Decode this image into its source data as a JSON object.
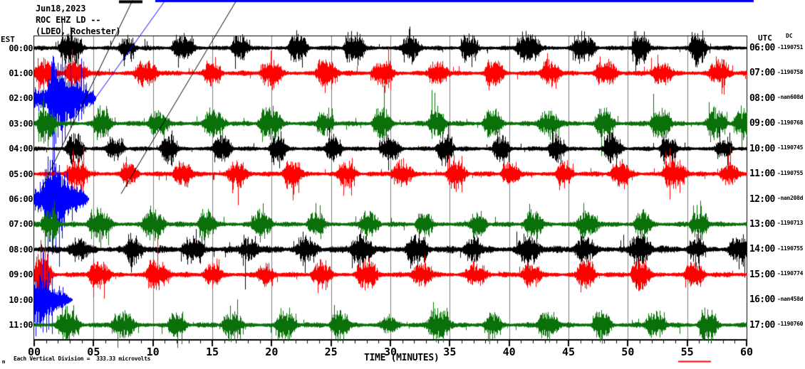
{
  "title": {
    "date": "Jun18,2023",
    "station": "ROC EHZ LD --",
    "location": "(LDEO, Rochester)"
  },
  "axis": {
    "left_header": "EST",
    "right_header": "UTC",
    "right_subheader": "DC",
    "x_label": "TIME (MINUTES)",
    "x_ticks": [
      "00",
      "05",
      "10",
      "15",
      "20",
      "25",
      "30",
      "35",
      "40",
      "45",
      "50",
      "55",
      "60"
    ],
    "scale_note": "Each Vertical Division =  333.33 microvolts",
    "scale_note_marker": "m"
  },
  "chart_data": {
    "type": "seismogram-helicorder",
    "x_range_minutes": [
      0,
      60
    ],
    "grid_interval_minutes": 5,
    "grid_color": "#7d7d7d",
    "palette": {
      "black": "#000000",
      "red": "#ff0000",
      "blue": "#0000ff",
      "green": "#0a700a"
    },
    "rows": [
      {
        "est": "00:00",
        "utc": "06:00",
        "dc": "-1190751",
        "color": "black",
        "bg": 2.2,
        "amp": 15,
        "bursts": [
          [
            2.9
          ],
          [
            7.7
          ],
          [
            12.4
          ],
          [
            17.2
          ],
          [
            22.1
          ],
          [
            26.8
          ],
          [
            31.6
          ],
          [
            36.5
          ],
          [
            41.4
          ],
          [
            46.1
          ],
          [
            50.9
          ],
          [
            55.8
          ]
        ],
        "event": null
      },
      {
        "est": "01:00",
        "utc": "07:00",
        "dc": "-1190758",
        "color": "red",
        "bg": 2.5,
        "amp": 14,
        "bursts": [
          [
            0.7,
            18
          ],
          [
            3.4
          ],
          [
            9.3
          ],
          [
            14.9
          ],
          [
            19.8
          ],
          [
            24.5
          ],
          [
            29.2
          ],
          [
            33.9
          ],
          [
            38.6
          ],
          [
            43.3
          ],
          [
            48.0
          ],
          [
            52.7
          ],
          [
            57.6
          ]
        ],
        "event": null
      },
      {
        "est": "02:00",
        "utc": "08:00",
        "dc": "-nan608d",
        "color": "blue",
        "bg": 0,
        "amp": 0,
        "bursts": [],
        "event": {
          "env": [
            [
              0,
              10
            ],
            [
              1.0,
              13
            ],
            [
              1.3,
              30
            ],
            [
              1.6,
              38
            ],
            [
              2.1,
              38
            ],
            [
              2.7,
              33
            ],
            [
              3.4,
              28
            ],
            [
              3.9,
              16
            ],
            [
              4.4,
              11
            ],
            [
              5.0,
              8
            ],
            [
              5.2,
              0
            ]
          ],
          "spikes": [
            [
              1.45,
              52,
              40
            ],
            [
              1.55,
              60,
              150
            ],
            [
              1.7,
              50,
              185
            ],
            [
              1.8,
              45,
              64
            ],
            [
              2.0,
              50,
              55
            ],
            [
              2.2,
              48,
              45
            ],
            [
              2.35,
              52,
              72
            ],
            [
              2.6,
              55,
              60
            ],
            [
              3.05,
              46,
              42
            ],
            [
              3.95,
              56,
              30
            ],
            [
              4.15,
              40,
              22
            ]
          ]
        }
      },
      {
        "est": "03:00",
        "utc": "09:00",
        "dc": "-1190768",
        "color": "green",
        "bg": 2.6,
        "amp": 15,
        "bursts": [
          [
            0.9,
            20
          ],
          [
            5.6
          ],
          [
            10.3
          ],
          [
            15.0
          ],
          [
            19.7
          ],
          [
            24.4
          ],
          [
            29.1
          ],
          [
            33.8
          ],
          [
            38.5
          ],
          [
            43.2
          ],
          [
            47.9
          ],
          [
            52.6
          ],
          [
            57.3
          ],
          [
            59.7
          ]
        ],
        "event": null
      },
      {
        "est": "04:00",
        "utc": "10:00",
        "dc": "-1190745",
        "color": "black",
        "bg": 2.2,
        "amp": 14,
        "bursts": [
          [
            3.3
          ],
          [
            6.7
          ],
          [
            11.2
          ],
          [
            15.7
          ],
          [
            20.4
          ],
          [
            25.1
          ],
          [
            29.8
          ],
          [
            34.5
          ],
          [
            39.2
          ],
          [
            43.9
          ],
          [
            48.6
          ],
          [
            53.3
          ],
          [
            58.0
          ]
        ],
        "event": null
      },
      {
        "est": "05:00",
        "utc": "11:00",
        "dc": "-1190755",
        "color": "red",
        "bg": 2.5,
        "amp": 14,
        "bursts": [
          [
            3.4
          ],
          [
            7.9
          ],
          [
            12.4
          ],
          [
            17.0
          ],
          [
            21.6
          ],
          [
            26.2
          ],
          [
            30.8
          ],
          [
            35.4
          ],
          [
            40.0
          ],
          [
            44.6
          ],
          [
            49.2
          ],
          [
            53.8
          ],
          [
            58.4
          ]
        ],
        "event": null
      },
      {
        "est": "06:00",
        "utc": "12:00",
        "dc": "-nan208d",
        "color": "blue",
        "bg": 0,
        "amp": 0,
        "bursts": [],
        "event": {
          "env": [
            [
              0,
              11
            ],
            [
              0.6,
              14
            ],
            [
              0.9,
              34
            ],
            [
              1.4,
              38
            ],
            [
              2.0,
              34
            ],
            [
              2.6,
              26
            ],
            [
              3.0,
              19
            ],
            [
              3.6,
              14
            ],
            [
              4.2,
              10
            ],
            [
              4.6,
              0
            ]
          ],
          "spikes": [
            [
              0.9,
              42,
              52
            ],
            [
              1.15,
              60,
              140
            ],
            [
              1.3,
              55,
              60
            ],
            [
              1.5,
              55,
              78
            ],
            [
              1.8,
              50,
              70
            ],
            [
              2.1,
              48,
              95
            ],
            [
              2.5,
              35,
              40
            ]
          ]
        }
      },
      {
        "est": "07:00",
        "utc": "13:00",
        "dc": "-1190713",
        "color": "green",
        "bg": 2.6,
        "amp": 15,
        "bursts": [
          [
            1.2,
            19
          ],
          [
            5.3
          ],
          [
            9.9
          ],
          [
            14.4
          ],
          [
            19.0
          ],
          [
            23.6
          ],
          [
            28.1
          ],
          [
            32.7
          ],
          [
            37.3
          ],
          [
            41.9
          ],
          [
            46.5
          ],
          [
            51.1
          ],
          [
            55.9
          ]
        ],
        "event": null
      },
      {
        "est": "08:00",
        "utc": "14:00",
        "dc": "-1190755",
        "color": "black",
        "bg": 3.8,
        "amp": 13,
        "bursts": [
          [
            3.6
          ],
          [
            8.3
          ],
          [
            13.2
          ],
          [
            18.0
          ],
          [
            22.8
          ],
          [
            27.4
          ],
          [
            32.1
          ],
          [
            36.8
          ],
          [
            41.5
          ],
          [
            46.2
          ],
          [
            50.9
          ],
          [
            55.6
          ],
          [
            59.3
          ]
        ],
        "event": null
      },
      {
        "est": "09:00",
        "utc": "15:00",
        "dc": "-1190774",
        "color": "red",
        "bg": 2.6,
        "amp": 14,
        "bursts": [
          [
            0.6,
            22
          ],
          [
            5.3
          ],
          [
            10.3
          ],
          [
            14.9
          ],
          [
            19.4
          ],
          [
            24.0
          ],
          [
            27.9
          ],
          [
            32.5
          ],
          [
            37.1
          ],
          [
            41.7
          ],
          [
            46.3
          ],
          [
            50.9
          ],
          [
            55.5
          ]
        ],
        "event": null
      },
      {
        "est": "10:00",
        "utc": "16:00",
        "dc": "-nan458d",
        "color": "blue",
        "bg": 0,
        "amp": 0,
        "bursts": [],
        "event": {
          "env": [
            [
              0,
              25
            ],
            [
              0.4,
              31
            ],
            [
              0.9,
              26
            ],
            [
              1.4,
              16
            ],
            [
              2.0,
              12
            ],
            [
              2.6,
              9
            ],
            [
              3.2,
              0
            ]
          ],
          "spikes": [
            [
              0.55,
              50,
              40
            ],
            [
              0.7,
              45,
              40
            ],
            [
              1.0,
              56,
              46
            ],
            [
              1.2,
              40,
              42
            ],
            [
              1.5,
              32,
              48
            ]
          ]
        }
      },
      {
        "est": "11:00",
        "utc": "17:00",
        "dc": "-1190760",
        "color": "green",
        "bg": 2.6,
        "amp": 15,
        "bursts": [
          [
            2.7
          ],
          [
            7.3
          ],
          [
            11.9
          ],
          [
            16.5
          ],
          [
            21.1
          ],
          [
            25.6
          ],
          [
            29.8,
            7
          ],
          [
            33.9
          ],
          [
            38.5
          ],
          [
            43.1
          ],
          [
            47.7
          ],
          [
            52.2
          ],
          [
            56.6
          ]
        ],
        "event": null
      }
    ],
    "artifacts": [
      {
        "type": "line",
        "color": "#0000ff",
        "x1": 218,
        "y1": 1,
        "x2": 1058,
        "y2": 1,
        "width": 3
      },
      {
        "type": "line",
        "color": "#000000",
        "x1": 167,
        "y1": 2,
        "x2": 200,
        "y2": 2,
        "width": 4
      },
      {
        "type": "line",
        "color": "#000000",
        "x1": 57,
        "y1": 268,
        "x2": 186,
        "y2": 0,
        "width": 1
      },
      {
        "type": "line",
        "color": "#000000",
        "x1": 170,
        "y1": 272,
        "x2": 332,
        "y2": 0,
        "width": 1
      },
      {
        "type": "line",
        "color": "#0000ff",
        "x1": 125,
        "y1": 150,
        "x2": 232,
        "y2": 0,
        "width": 1
      },
      {
        "type": "line",
        "color": "#ff0000",
        "x1": 952,
        "y1": 508,
        "x2": 998,
        "y2": 508,
        "width": 2
      }
    ]
  }
}
